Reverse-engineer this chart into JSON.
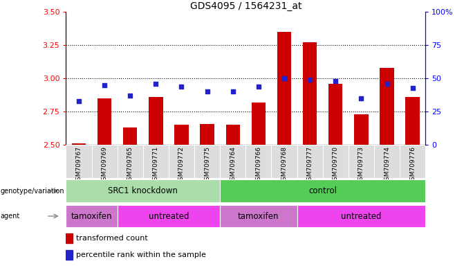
{
  "title": "GDS4095 / 1564231_at",
  "samples": [
    "GSM709767",
    "GSM709769",
    "GSM709765",
    "GSM709771",
    "GSM709772",
    "GSM709775",
    "GSM709764",
    "GSM709766",
    "GSM709768",
    "GSM709777",
    "GSM709770",
    "GSM709773",
    "GSM709774",
    "GSM709776"
  ],
  "bar_values": [
    2.51,
    2.85,
    2.63,
    2.86,
    2.65,
    2.66,
    2.65,
    2.82,
    3.35,
    3.27,
    2.96,
    2.73,
    3.08,
    2.86
  ],
  "blue_values": [
    33,
    45,
    37,
    46,
    44,
    40,
    40,
    44,
    50,
    49,
    48,
    35,
    46,
    43
  ],
  "bar_color": "#cc0000",
  "blue_color": "#2222cc",
  "ylim_left": [
    2.5,
    3.5
  ],
  "ylim_right": [
    0,
    100
  ],
  "yticks_left": [
    2.5,
    2.75,
    3.0,
    3.25,
    3.5
  ],
  "yticks_right": [
    0,
    25,
    50,
    75,
    100
  ],
  "ytick_labels_right": [
    "0",
    "25",
    "50",
    "75",
    "100%"
  ],
  "grid_color": "black",
  "genotype_groups": [
    {
      "label": "SRC1 knockdown",
      "start": 0,
      "end": 6,
      "color": "#aaddaa"
    },
    {
      "label": "control",
      "start": 6,
      "end": 14,
      "color": "#55cc55"
    }
  ],
  "agent_groups": [
    {
      "label": "tamoxifen",
      "start": 0,
      "end": 2,
      "color": "#cc77cc"
    },
    {
      "label": "untreated",
      "start": 2,
      "end": 6,
      "color": "#ee44ee"
    },
    {
      "label": "tamoxifen",
      "start": 6,
      "end": 9,
      "color": "#cc77cc"
    },
    {
      "label": "untreated",
      "start": 9,
      "end": 14,
      "color": "#ee44ee"
    }
  ],
  "legend_red_label": "transformed count",
  "legend_blue_label": "percentile rank within the sample",
  "genotype_label": "genotype/variation",
  "agent_label": "agent",
  "bar_width": 0.55,
  "sample_area_bg": "#dddddd"
}
